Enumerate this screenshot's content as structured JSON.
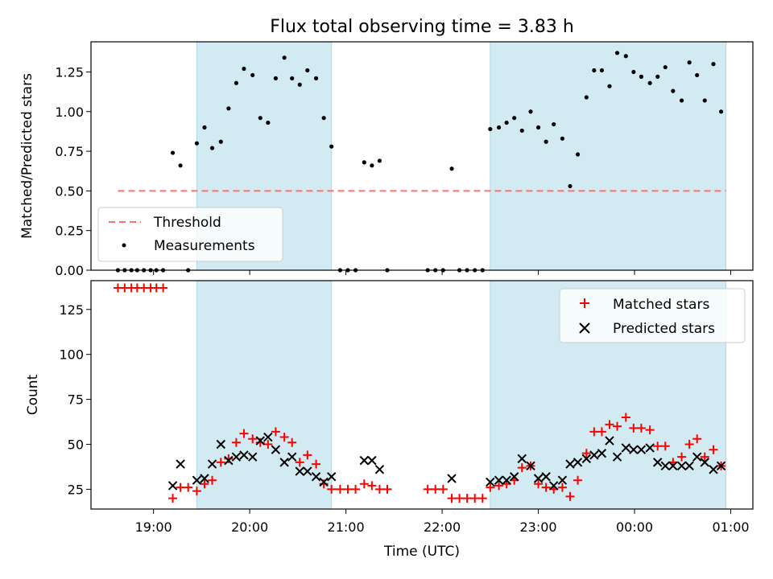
{
  "title": "Flux total observing time = 3.83 h",
  "colors": {
    "shade": "#add8e6",
    "threshold": "#ff7070",
    "measurement": "#000000",
    "matched": "#ff0000",
    "predicted": "#000000"
  },
  "chart_data": [
    {
      "type": "scatter",
      "ylabel": "Matched/Predicted stars",
      "ylim": [
        0,
        1.44
      ],
      "yticks": [
        "0.00",
        "0.25",
        "0.50",
        "0.75",
        "1.00",
        "1.25"
      ],
      "xlim": [
        18.35,
        25.23
      ],
      "shaded_regions": [
        [
          19.45,
          20.85
        ],
        [
          22.5,
          24.95
        ]
      ],
      "threshold": {
        "label": "Threshold",
        "value": 0.5,
        "x_range": [
          18.63,
          24.95
        ]
      },
      "measurements_label": "Measurements",
      "measurements": [
        [
          18.63,
          0
        ],
        [
          18.7,
          0
        ],
        [
          18.77,
          0
        ],
        [
          18.83,
          0
        ],
        [
          18.9,
          0
        ],
        [
          18.97,
          0
        ],
        [
          19.03,
          0
        ],
        [
          19.1,
          0
        ],
        [
          19.2,
          0.74
        ],
        [
          19.28,
          0.66
        ],
        [
          19.36,
          0
        ],
        [
          19.45,
          0.8
        ],
        [
          19.53,
          0.9
        ],
        [
          19.61,
          0.77
        ],
        [
          19.7,
          0.81
        ],
        [
          19.78,
          1.02
        ],
        [
          19.86,
          1.18
        ],
        [
          19.94,
          1.27
        ],
        [
          20.03,
          1.23
        ],
        [
          20.11,
          0.96
        ],
        [
          20.19,
          0.93
        ],
        [
          20.27,
          1.21
        ],
        [
          20.36,
          1.34
        ],
        [
          20.44,
          1.21
        ],
        [
          20.52,
          1.17
        ],
        [
          20.6,
          1.26
        ],
        [
          20.69,
          1.21
        ],
        [
          20.77,
          0.96
        ],
        [
          20.85,
          0.78
        ],
        [
          20.94,
          0
        ],
        [
          21.02,
          0
        ],
        [
          21.1,
          0
        ],
        [
          21.19,
          0.68
        ],
        [
          21.27,
          0.66
        ],
        [
          21.35,
          0.69
        ],
        [
          21.43,
          0
        ],
        [
          21.85,
          0
        ],
        [
          21.93,
          0
        ],
        [
          22.01,
          0
        ],
        [
          22.1,
          0.64
        ],
        [
          22.18,
          0
        ],
        [
          22.26,
          0
        ],
        [
          22.34,
          0
        ],
        [
          22.42,
          0
        ],
        [
          22.5,
          0.89
        ],
        [
          22.59,
          0.9
        ],
        [
          22.67,
          0.93
        ],
        [
          22.75,
          0.96
        ],
        [
          22.83,
          0.88
        ],
        [
          22.92,
          1.0
        ],
        [
          23.0,
          0.9
        ],
        [
          23.08,
          0.81
        ],
        [
          23.16,
          0.92
        ],
        [
          23.25,
          0.83
        ],
        [
          23.33,
          0.53
        ],
        [
          23.41,
          0.73
        ],
        [
          23.5,
          1.09
        ],
        [
          23.58,
          1.26
        ],
        [
          23.66,
          1.26
        ],
        [
          23.74,
          1.16
        ],
        [
          23.82,
          1.37
        ],
        [
          23.91,
          1.35
        ],
        [
          23.99,
          1.25
        ],
        [
          24.07,
          1.22
        ],
        [
          24.16,
          1.18
        ],
        [
          24.24,
          1.22
        ],
        [
          24.32,
          1.28
        ],
        [
          24.4,
          1.13
        ],
        [
          24.49,
          1.07
        ],
        [
          24.57,
          1.31
        ],
        [
          24.65,
          1.23
        ],
        [
          24.73,
          1.07
        ],
        [
          24.82,
          1.3
        ],
        [
          24.9,
          1.0
        ]
      ]
    },
    {
      "type": "scatter",
      "ylabel": "Count",
      "xlabel": "Time (UTC)",
      "ylim": [
        14,
        141
      ],
      "yticks": [
        "25",
        "50",
        "75",
        "100",
        "125"
      ],
      "xlim": [
        18.35,
        25.23
      ],
      "xticks": [
        "19:00",
        "20:00",
        "21:00",
        "22:00",
        "23:00",
        "00:00",
        "01:00"
      ],
      "xtick_values": [
        19,
        20,
        21,
        22,
        23,
        24,
        25
      ],
      "shaded_regions": [
        [
          19.45,
          20.85
        ],
        [
          22.5,
          24.95
        ]
      ],
      "series": [
        {
          "name": "Matched stars",
          "marker": "plus",
          "points": [
            [
              18.63,
              137
            ],
            [
              18.7,
              137
            ],
            [
              18.77,
              137
            ],
            [
              18.83,
              137
            ],
            [
              18.9,
              137
            ],
            [
              18.97,
              137
            ],
            [
              19.03,
              137
            ],
            [
              19.1,
              137
            ],
            [
              19.2,
              20
            ],
            [
              19.28,
              26
            ],
            [
              19.36,
              26
            ],
            [
              19.45,
              24
            ],
            [
              19.53,
              28
            ],
            [
              19.61,
              30
            ],
            [
              19.7,
              40
            ],
            [
              19.78,
              42
            ],
            [
              19.86,
              51
            ],
            [
              19.94,
              56
            ],
            [
              20.03,
              53
            ],
            [
              20.11,
              51
            ],
            [
              20.19,
              50
            ],
            [
              20.27,
              57
            ],
            [
              20.36,
              54
            ],
            [
              20.44,
              51
            ],
            [
              20.52,
              40
            ],
            [
              20.6,
              44
            ],
            [
              20.69,
              39
            ],
            [
              20.77,
              28
            ],
            [
              20.85,
              25
            ],
            [
              20.94,
              25
            ],
            [
              21.02,
              25
            ],
            [
              21.1,
              25
            ],
            [
              21.19,
              28
            ],
            [
              21.27,
              27
            ],
            [
              21.35,
              25
            ],
            [
              21.43,
              25
            ],
            [
              21.85,
              25
            ],
            [
              21.93,
              25
            ],
            [
              22.01,
              25
            ],
            [
              22.1,
              20
            ],
            [
              22.18,
              20
            ],
            [
              22.26,
              20
            ],
            [
              22.34,
              20
            ],
            [
              22.42,
              20
            ],
            [
              22.5,
              26
            ],
            [
              22.59,
              27
            ],
            [
              22.67,
              28
            ],
            [
              22.75,
              30
            ],
            [
              22.83,
              37
            ],
            [
              22.92,
              38
            ],
            [
              23.0,
              28
            ],
            [
              23.08,
              26
            ],
            [
              23.16,
              25
            ],
            [
              23.25,
              26
            ],
            [
              23.33,
              21
            ],
            [
              23.41,
              30
            ],
            [
              23.5,
              45
            ],
            [
              23.58,
              57
            ],
            [
              23.66,
              57
            ],
            [
              23.74,
              61
            ],
            [
              23.82,
              60
            ],
            [
              23.91,
              65
            ],
            [
              23.99,
              59
            ],
            [
              24.07,
              59
            ],
            [
              24.16,
              58
            ],
            [
              24.24,
              49
            ],
            [
              24.32,
              49
            ],
            [
              24.4,
              40
            ],
            [
              24.49,
              43
            ],
            [
              24.57,
              50
            ],
            [
              24.65,
              53
            ],
            [
              24.73,
              43
            ],
            [
              24.82,
              47
            ],
            [
              24.9,
              38
            ]
          ]
        },
        {
          "name": "Predicted stars",
          "marker": "x",
          "points": [
            [
              19.2,
              27
            ],
            [
              19.28,
              39
            ],
            [
              19.45,
              30
            ],
            [
              19.53,
              31
            ],
            [
              19.61,
              39
            ],
            [
              19.7,
              50
            ],
            [
              19.78,
              41
            ],
            [
              19.86,
              43
            ],
            [
              19.94,
              44
            ],
            [
              20.03,
              43
            ],
            [
              20.11,
              52
            ],
            [
              20.19,
              54
            ],
            [
              20.27,
              47
            ],
            [
              20.36,
              40
            ],
            [
              20.44,
              43
            ],
            [
              20.52,
              35
            ],
            [
              20.6,
              35
            ],
            [
              20.69,
              32
            ],
            [
              20.77,
              29
            ],
            [
              20.85,
              32
            ],
            [
              21.19,
              41
            ],
            [
              21.27,
              41
            ],
            [
              21.35,
              36
            ],
            [
              22.1,
              31
            ],
            [
              22.5,
              29
            ],
            [
              22.59,
              30
            ],
            [
              22.67,
              30
            ],
            [
              22.75,
              32
            ],
            [
              22.83,
              42
            ],
            [
              22.92,
              38
            ],
            [
              23.0,
              31
            ],
            [
              23.08,
              32
            ],
            [
              23.16,
              27
            ],
            [
              23.25,
              30
            ],
            [
              23.33,
              39
            ],
            [
              23.41,
              40
            ],
            [
              23.5,
              42
            ],
            [
              23.58,
              44
            ],
            [
              23.66,
              45
            ],
            [
              23.74,
              52
            ],
            [
              23.82,
              43
            ],
            [
              23.91,
              48
            ],
            [
              23.99,
              47
            ],
            [
              24.07,
              47
            ],
            [
              24.16,
              48
            ],
            [
              24.24,
              40
            ],
            [
              24.32,
              38
            ],
            [
              24.4,
              38
            ],
            [
              24.49,
              38
            ],
            [
              24.57,
              38
            ],
            [
              24.65,
              43
            ],
            [
              24.73,
              40
            ],
            [
              24.82,
              36
            ],
            [
              24.9,
              38
            ]
          ]
        }
      ]
    }
  ]
}
